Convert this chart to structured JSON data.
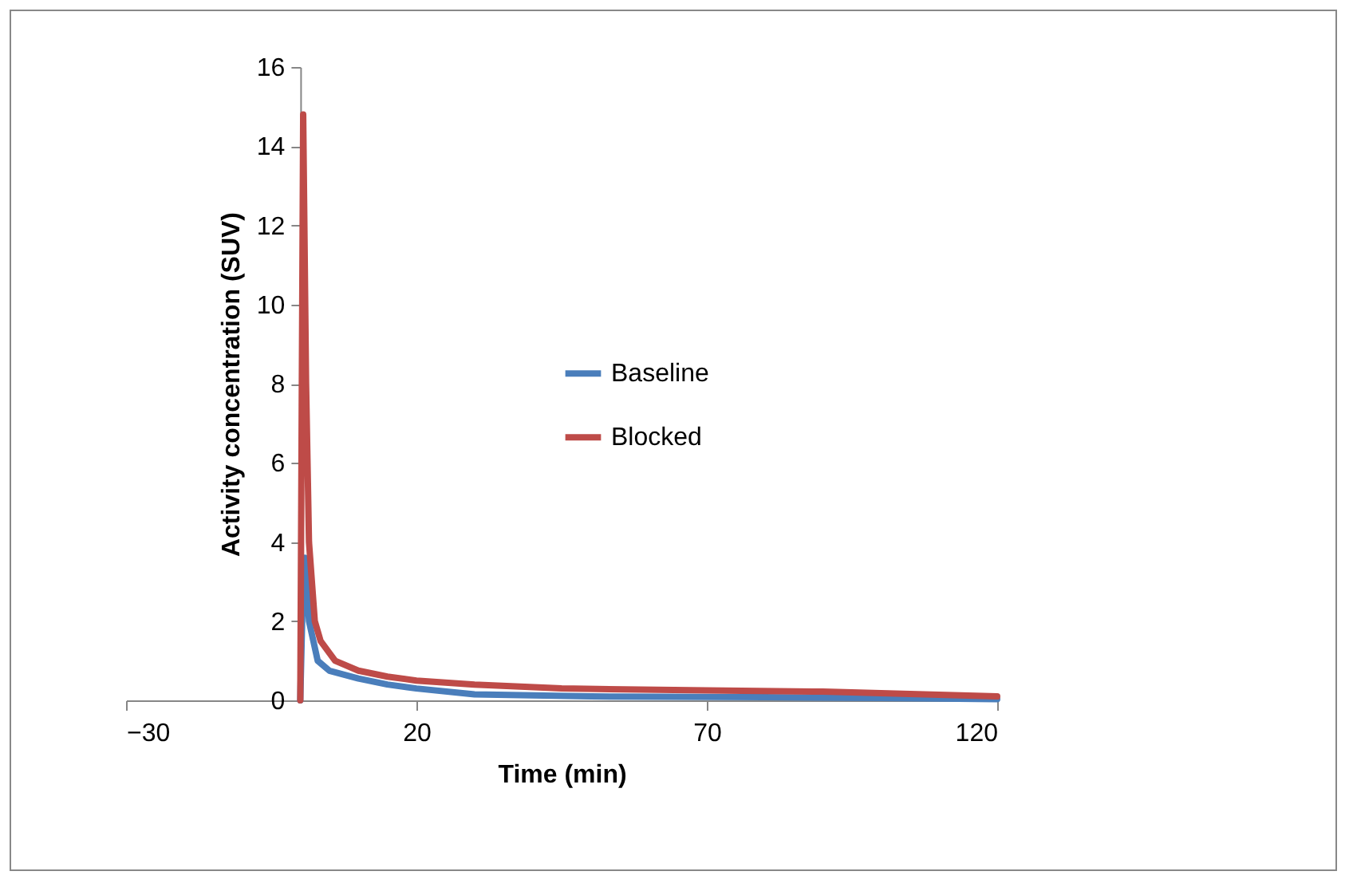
{
  "chart_data": {
    "type": "line",
    "xlabel": "Time (min)",
    "ylabel": "Activity concentration (SUV)",
    "xlim": [
      -30,
      120
    ],
    "xticks": [
      -30,
      20,
      70,
      120
    ],
    "ylim": [
      0,
      16
    ],
    "yticks": [
      0,
      2,
      4,
      6,
      8,
      10,
      12,
      14,
      16
    ],
    "grid": false,
    "legend": "right",
    "marker": "none",
    "line_style": "solid",
    "series": [
      {
        "name": "Baseline",
        "color": "#4a7ebb",
        "x": [
          0,
          0.4,
          0.8,
          1.5,
          3,
          5,
          10,
          15,
          20,
          30,
          50,
          80,
          100,
          120
        ],
        "values": [
          0,
          2.5,
          3.6,
          2,
          1,
          0.75,
          0.55,
          0.4,
          0.3,
          0.15,
          0.1,
          0.08,
          0.06,
          0.03
        ]
      },
      {
        "name": "Blocked",
        "color": "#be4b48",
        "x": [
          0,
          0.5,
          1,
          1.5,
          2.5,
          3.5,
          6,
          10,
          15,
          20,
          30,
          45,
          70,
          90,
          120
        ],
        "values": [
          0,
          14.8,
          8,
          4,
          2,
          1.5,
          1,
          0.75,
          0.6,
          0.5,
          0.4,
          0.3,
          0.25,
          0.22,
          0.1
        ]
      }
    ]
  }
}
